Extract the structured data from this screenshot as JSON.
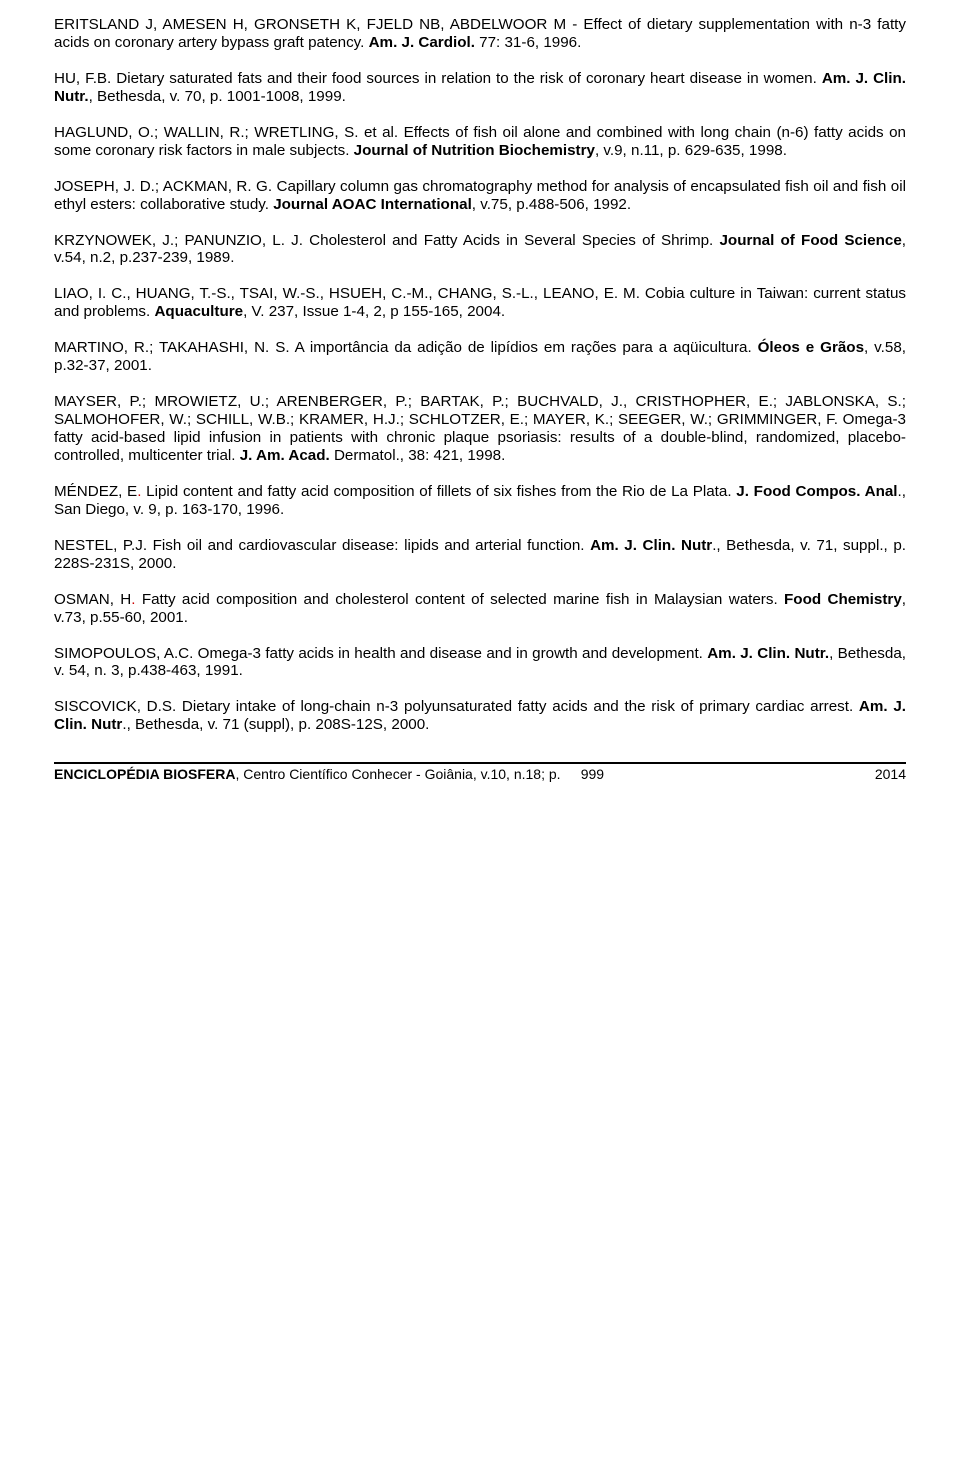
{
  "refs": [
    {
      "html": "ERITSLAND J, AMESEN H, GRONSETH K, FJELD NB, ABDELWOOR M - Effect of dietary supplementation with n-3 fatty acids on coronary artery bypass graft patency. <span class='b'>Am. J. Cardiol.</span> 77: 31-6, 1996."
    },
    {
      "html": "HU, F.B. Dietary saturated fats and their food sources in relation to the risk of coronary heart disease in women. <span class='b'>Am. J. Clin. Nutr.</span>, Bethesda, v. 70, p. 1001-1008, 1999."
    },
    {
      "html": "HAGLUND, O.; WALLIN, R.; WRETLING, S. et al. Effects of fish oil alone and combined with long chain (n-6) fatty acids on some coronary risk factors in male subjects. <span class='b'>Journal of Nutrition Biochemistry</span>, v.9, n.11, p. 629-635, 1998."
    },
    {
      "html": "JOSEPH, J. D.; ACKMAN, R. G. Capillary column gas chromatography method for analysis of encapsulated fish oil and fish oil ethyl esters: collaborative study. <span class='b'>Journal AOAC International</span>, v.75, p.488-506, 1992."
    },
    {
      "html": "KRZYNOWEK, J.; PANUNZIO, L. J. Cholesterol and Fatty Acids in Several Species of Shrimp. <span class='b'>Journal of Food Science</span>, v.54, n.2, p.237-239, 1989."
    },
    {
      "html": "LIAO, I. C., HUANG, T.-S., TSAI, W.-S., HSUEH, C.-M., CHANG, S.-L., LEANO, E. M. Cobia culture in Taiwan: current status and problems. <span class='b'>Aquaculture</span>, V. 237, Issue 1-4, 2, p 155-165, 2004."
    },
    {
      "html": "MARTINO, R.; TAKAHASHI, N. S. A importância da adição de lipídios em rações para a aqüicultura. <span class='b'>Óleos e Grãos</span>, v.58, p.32-37, 2001."
    },
    {
      "html": "MAYSER, P.; MROWIETZ, U.; ARENBERGER, P.; BARTAK, P.; BUCHVALD, J., CRISTHOPHER, E.; JABLONSKA, S.; SALMOHOFER, W.; SCHILL, W.B.; KRAMER, H.J.; SCHLOTZER, E.; MAYER, K.; SEEGER, W.; GRIMMINGER, F. Omega-3 fatty acid-based lipid infusion in patients with chronic plaque psoriasis: results of a double-blind, randomized, placebo-controlled, multicenter trial.  <span class='b'>J. Am. Acad.</span> Dermatol., 38: 421, 1998."
    },
    {
      "html": "MÉNDEZ, E<span class='reddot'>.</span> Lipid content and fatty acid composition of fillets of six fishes from the Rio de La Plata.  <span class='b'>J. Food Compos. Anal</span>., San Diego,  v. 9, p. 163-170, 1996."
    },
    {
      "html": "NESTEL, P.J. Fish oil and cardiovascular disease: lipids and arterial function. <span class='b'>Am. J. Clin. Nutr</span>., Bethesda,  v. 71, suppl., p. 228S-231S, 2000."
    },
    {
      "html": "OSMAN, H<span class='reddot'>.</span> Fatty acid composition and cholesterol content of selected marine fish in Malaysian waters. <span class='b'>Food Chemistry</span>, v.73, p.55-60, 2001."
    },
    {
      "html": "SIMOPOULOS, A.C. Omega-3 fatty acids in health and disease and in growth and development. <span class='b'>Am. J. Clin. Nutr.</span>, Bethesda, v. 54, n. 3, p.438-463, 1991."
    },
    {
      "html": "SISCOVICK, D.S. Dietary intake of long-chain n-3 polyunsaturated fatty acids and the risk of primary cardiac arrest. <span class='b'>Am. J. Clin. Nutr</span>., Bethesda, v. 71 (suppl), p. 208S-12S, 2000."
    }
  ],
  "footer": {
    "journal": "ENCICLOPÉDIA BIOSFERA",
    "publisher": ", Centro Científico Conhecer - Goiânia, v.10, n.18; p. ",
    "page": "999",
    "year": "2014"
  }
}
